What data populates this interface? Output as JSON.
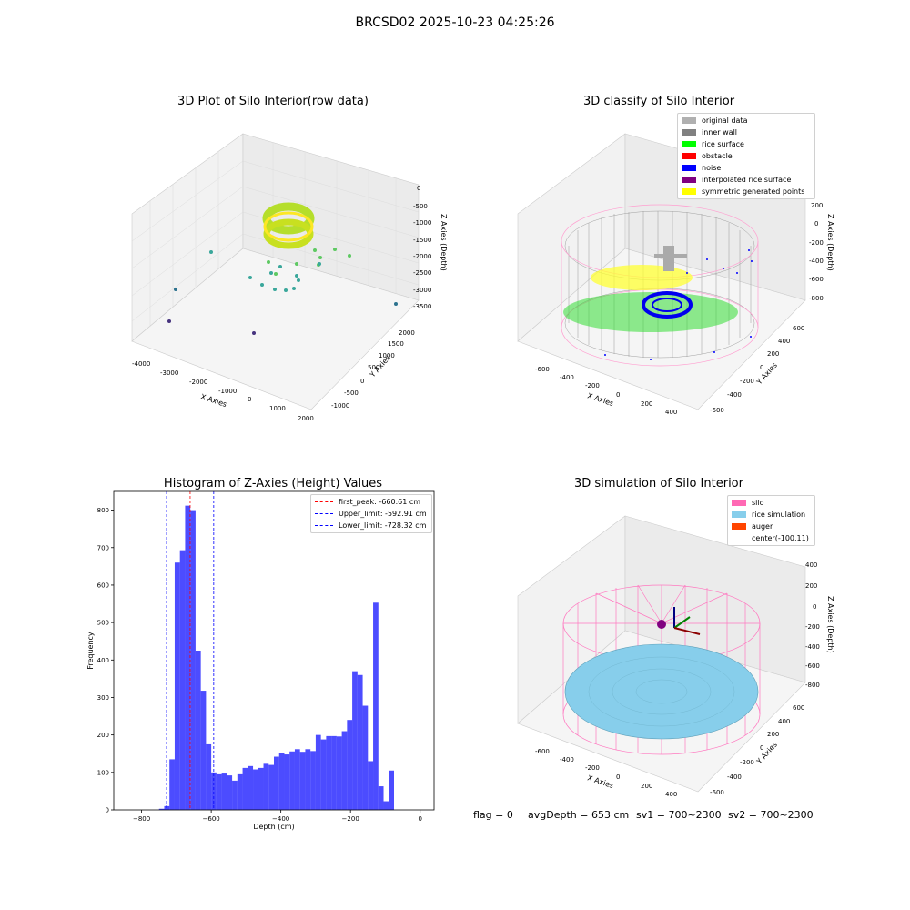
{
  "suptitle": "BRCSD02 2025-10-23 04:25:26",
  "panels": {
    "raw": {
      "title": "3D Plot of Silo Interior(row data)",
      "xlabel": "X Axies",
      "ylabel": "Y Axies",
      "zlabel": "Z Axies (Depth)",
      "xticks": [
        "-4000",
        "-3000",
        "-2000",
        "-1000",
        "0",
        "1000",
        "2000"
      ],
      "yticks": [
        "-1000",
        "-500",
        "0",
        "500",
        "1000",
        "1500",
        "2000"
      ],
      "zticks": [
        "0",
        "-500",
        "-1000",
        "-1500",
        "-2000",
        "-2500",
        "-3000",
        "-3500"
      ]
    },
    "classify": {
      "title": "3D classify of Silo Interior",
      "xlabel": "X Axies",
      "ylabel": "Y Axies",
      "zlabel": "Z Axies (Depth)",
      "xticks": [
        "-600",
        "-400",
        "-200",
        "0",
        "200",
        "400"
      ],
      "yticks": [
        "600",
        "400",
        "200",
        "0",
        "-200",
        "-400",
        "-600"
      ],
      "zticks": [
        "200",
        "0",
        "-200",
        "-400",
        "-600",
        "-800"
      ],
      "legend": [
        {
          "label": "original data",
          "color": "#b0b0b0"
        },
        {
          "label": "inner wall",
          "color": "#808080"
        },
        {
          "label": "rice surface",
          "color": "#00ff00"
        },
        {
          "label": "obstacle",
          "color": "#ff0000"
        },
        {
          "label": "noise",
          "color": "#0000ff"
        },
        {
          "label": "interpolated rice surface",
          "color": "#800080"
        },
        {
          "label": "symmetric generated points",
          "color": "#ffff00"
        }
      ]
    },
    "hist": {
      "title": "Histogram of Z-Axies (Height) Values",
      "legend": [
        {
          "label": "first_peak: -660.61 cm",
          "color": "#ff0000"
        },
        {
          "label": "Upper_limit: -592.91 cm",
          "color": "#0000ff"
        },
        {
          "label": "Lower_limit: -728.32 cm",
          "color": "#0000ff"
        }
      ]
    },
    "sim": {
      "title": "3D simulation of Silo Interior",
      "xlabel": "X Axies",
      "ylabel": "Y Axies",
      "zlabel": "Z Axies (Depth)",
      "xticks": [
        "-600",
        "-400",
        "-200",
        "0",
        "200",
        "400"
      ],
      "yticks": [
        "600",
        "400",
        "200",
        "0",
        "-200",
        "-400",
        "-600"
      ],
      "zticks": [
        "400",
        "200",
        "0",
        "-200",
        "-400",
        "-600",
        "-800"
      ],
      "legend": [
        {
          "label": "silo",
          "color": "#ff69b4"
        },
        {
          "label": "rice simulation",
          "color": "#87ceeb"
        },
        {
          "label": "auger",
          "color": "#ff4500"
        },
        {
          "label": "center(-100,11)",
          "color": ""
        }
      ]
    }
  },
  "status": {
    "flag": "flag = 0",
    "avg_depth": "avgDepth = 653 cm",
    "sv1": "sv1 = 700~2300",
    "sv2": "sv2 = 700~2300"
  },
  "chart_data": [
    {
      "type": "histogram",
      "title": "Histogram of Z-Axies (Height) Values",
      "xlabel": "Depth (cm)",
      "ylabel": "Frequency",
      "xlim": [
        -880,
        40
      ],
      "ylim": [
        0,
        850
      ],
      "xticks": [
        -800,
        -600,
        -400,
        -200,
        0
      ],
      "yticks": [
        0,
        100,
        200,
        300,
        400,
        500,
        600,
        700,
        800
      ],
      "bin_width": 15,
      "bins_start": [
        -750,
        -735,
        -720,
        -705,
        -690,
        -675,
        -660,
        -645,
        -630,
        -615,
        -600,
        -585,
        -570,
        -555,
        -540,
        -525,
        -510,
        -495,
        -480,
        -465,
        -450,
        -435,
        -420,
        -405,
        -390,
        -375,
        -360,
        -345,
        -330,
        -315,
        -300,
        -285,
        -270,
        -255,
        -240,
        -225,
        -210,
        -195,
        -180,
        -165,
        -150,
        -135,
        -120,
        -105,
        -90,
        -75,
        -60,
        -45,
        -30,
        -15
      ],
      "counts": [
        3,
        10,
        135,
        660,
        693,
        812,
        800,
        425,
        318,
        175,
        100,
        95,
        97,
        92,
        78,
        95,
        112,
        117,
        108,
        112,
        123,
        120,
        142,
        153,
        148,
        156,
        162,
        155,
        162,
        157,
        200,
        188,
        197,
        197,
        196,
        210,
        240,
        370,
        360,
        278,
        130,
        553,
        63,
        23,
        105,
        0,
        0,
        0,
        0,
        0
      ],
      "bar_color": "#0000ff",
      "lines": [
        {
          "name": "first_peak: -660.61 cm",
          "x": -660.61,
          "color": "#ff0000"
        },
        {
          "name": "Upper_limit: -592.91 cm",
          "x": -592.91,
          "color": "#0000ff"
        },
        {
          "name": "Lower_limit: -728.32 cm",
          "x": -728.32,
          "color": "#0000ff"
        }
      ]
    }
  ]
}
